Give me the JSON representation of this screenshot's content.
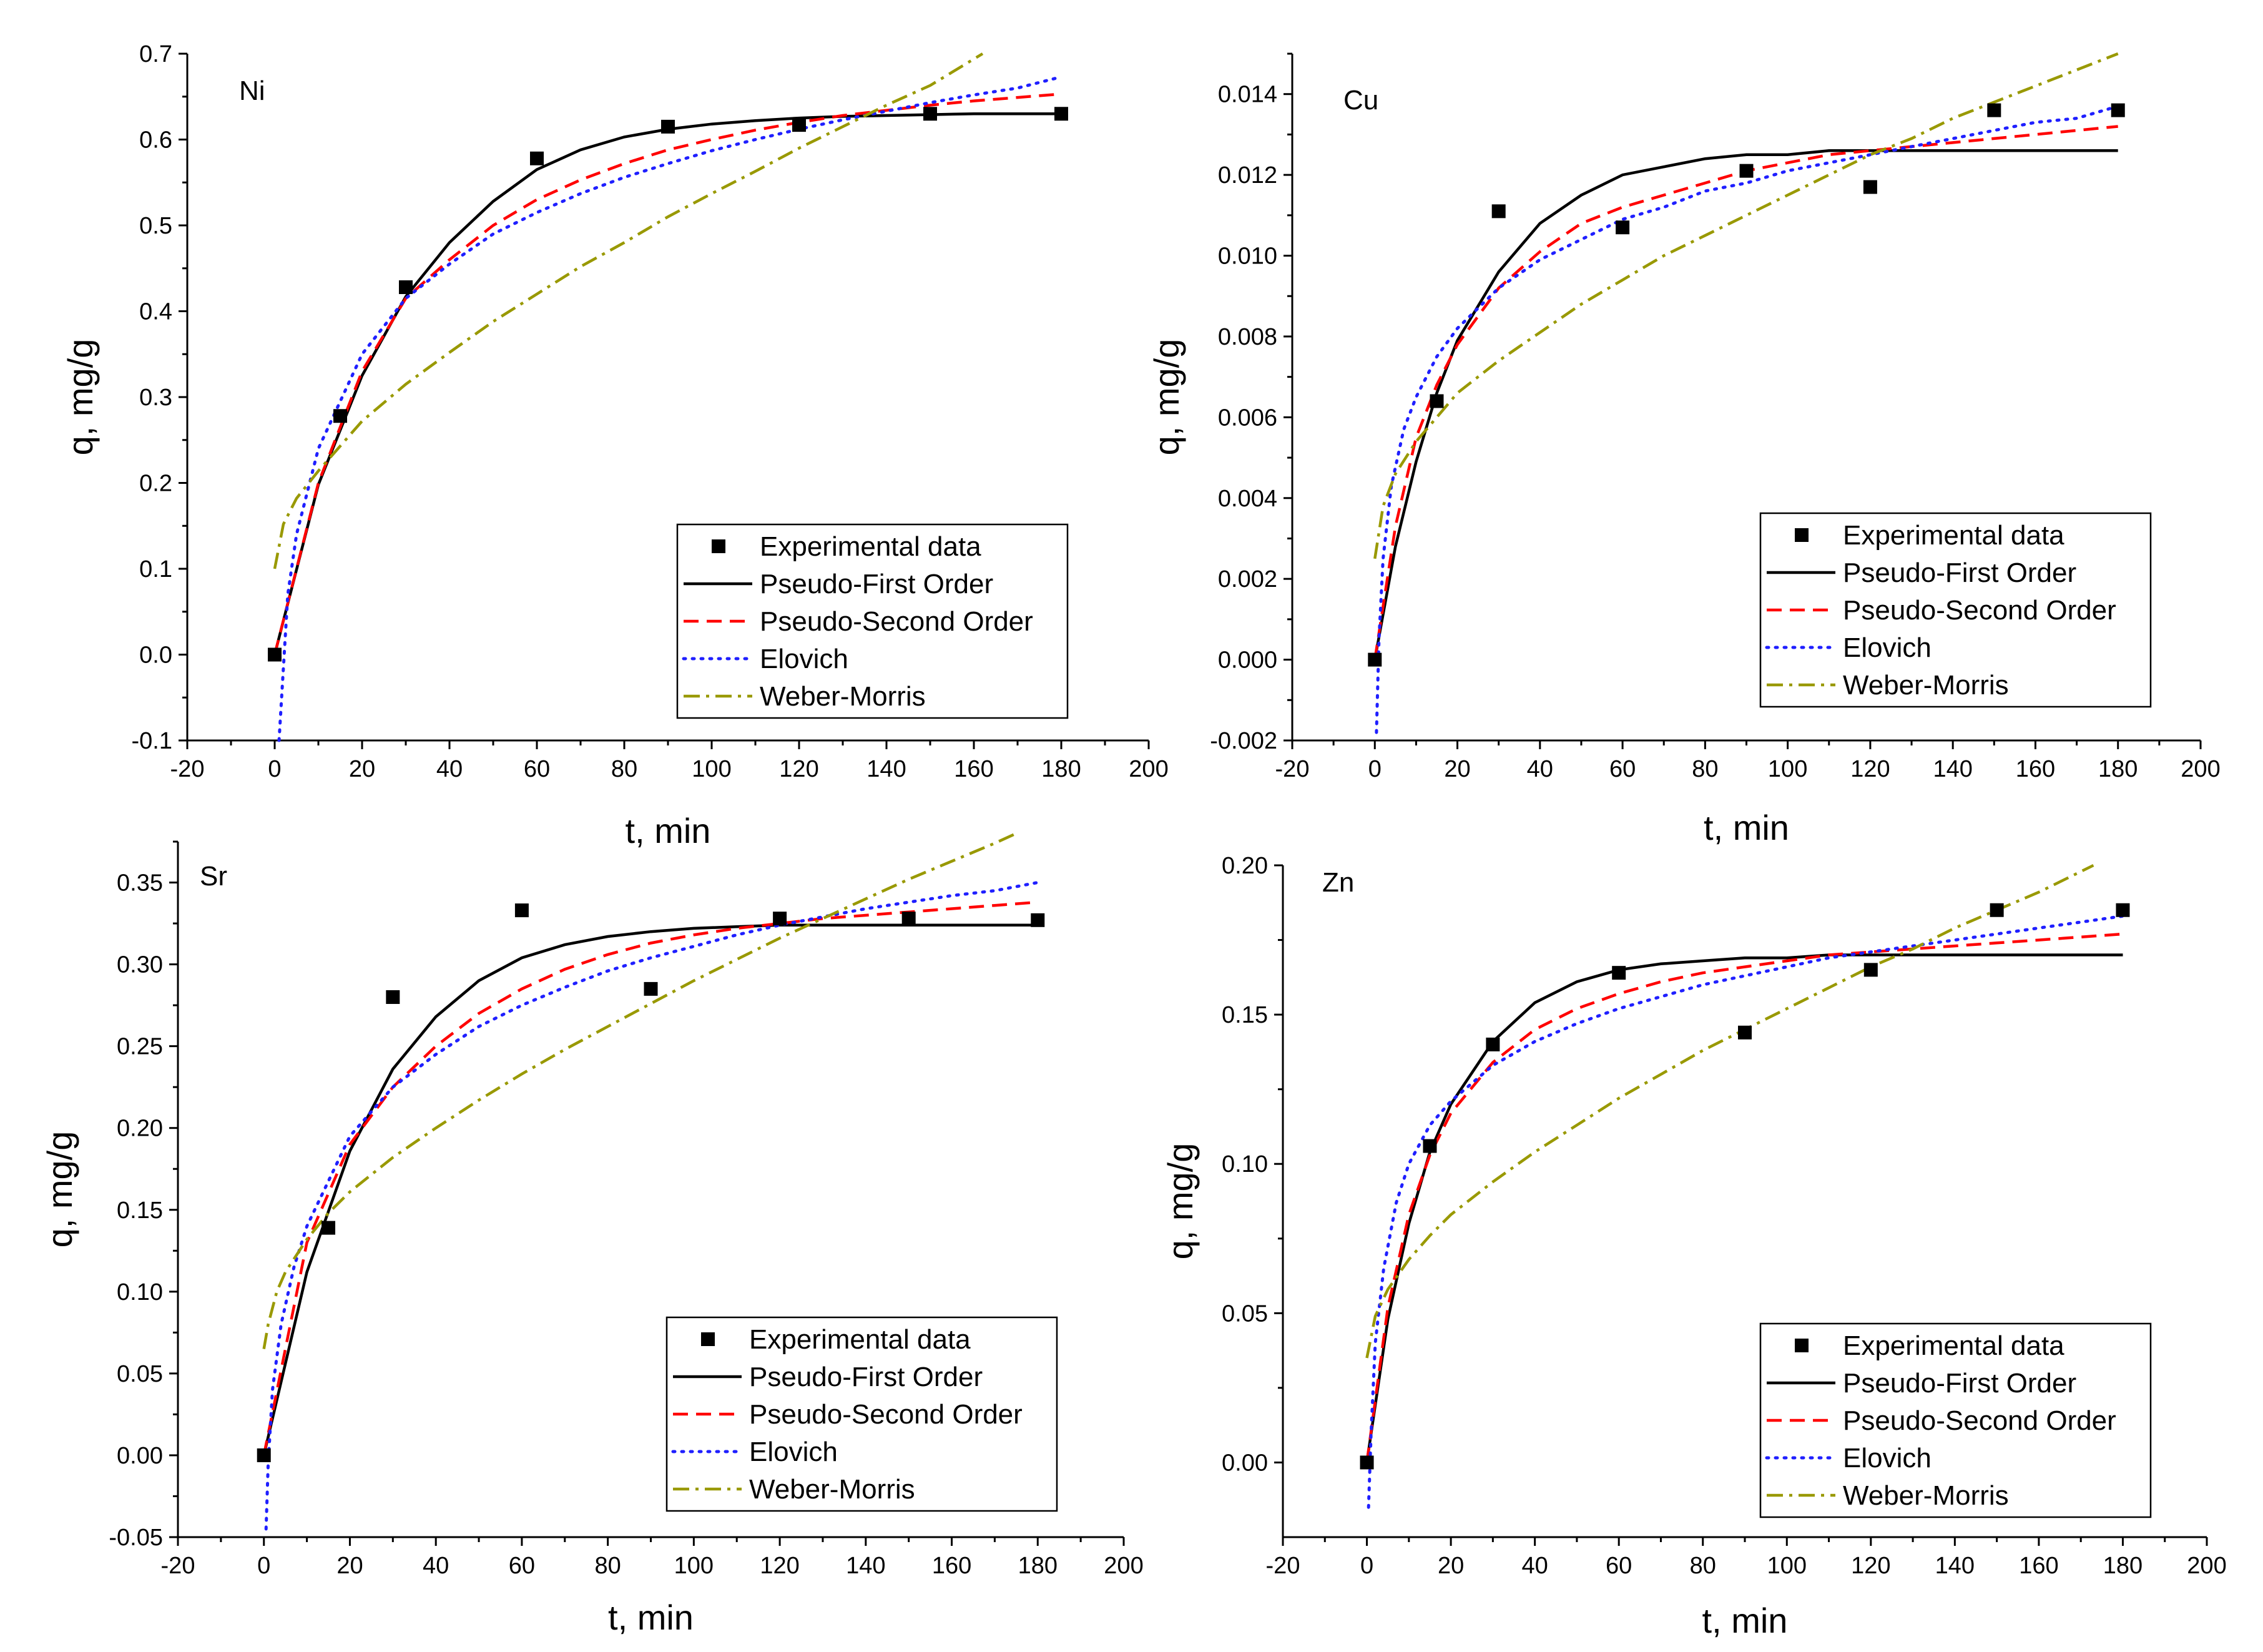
{
  "chart_data": [
    {
      "type": "line",
      "title": "Ni",
      "xlabel": "t, min",
      "ylabel": "q, mg/g",
      "xlim": [
        -20,
        200
      ],
      "ylim": [
        -0.1,
        0.7
      ],
      "xticks": [
        "-20",
        "0",
        "20",
        "40",
        "60",
        "80",
        "100",
        "120",
        "140",
        "160",
        "180",
        "200"
      ],
      "yticks": [
        "-0.1",
        "0.0",
        "0.1",
        "0.2",
        "0.3",
        "0.4",
        "0.5",
        "0.6",
        "0.7"
      ],
      "experimental": {
        "name": "Experimental data",
        "x": [
          0,
          15,
          30,
          60,
          90,
          120,
          150,
          180
        ],
        "y": [
          0.0,
          0.278,
          0.428,
          0.578,
          0.615,
          0.617,
          0.63,
          0.63
        ]
      },
      "series": [
        {
          "name": "Pseudo-First Order",
          "color": "#000000",
          "style": "solid",
          "x": [
            0,
            10,
            20,
            30,
            40,
            50,
            60,
            70,
            80,
            90,
            100,
            110,
            120,
            130,
            140,
            150,
            160,
            170,
            180
          ],
          "y": [
            0.0,
            0.198,
            0.325,
            0.417,
            0.48,
            0.528,
            0.565,
            0.588,
            0.603,
            0.612,
            0.618,
            0.622,
            0.625,
            0.627,
            0.628,
            0.629,
            0.63,
            0.63,
            0.63
          ]
        },
        {
          "name": "Pseudo-Second Order",
          "color": "#ff0000",
          "style": "dash",
          "x": [
            0,
            10,
            20,
            30,
            40,
            50,
            60,
            70,
            80,
            90,
            100,
            110,
            120,
            130,
            140,
            150,
            160,
            170,
            180
          ],
          "y": [
            0.0,
            0.2,
            0.33,
            0.415,
            0.46,
            0.5,
            0.53,
            0.553,
            0.572,
            0.588,
            0.6,
            0.611,
            0.62,
            0.628,
            0.634,
            0.64,
            0.645,
            0.649,
            0.653
          ]
        },
        {
          "name": "Elovich",
          "color": "#1f1fff",
          "style": "dot",
          "x": [
            1,
            3,
            5,
            10,
            20,
            30,
            40,
            50,
            60,
            70,
            80,
            90,
            100,
            110,
            120,
            130,
            140,
            150,
            160,
            170,
            180
          ],
          "y": [
            -0.1,
            0.07,
            0.14,
            0.24,
            0.35,
            0.415,
            0.455,
            0.49,
            0.515,
            0.537,
            0.556,
            0.572,
            0.587,
            0.6,
            0.612,
            0.623,
            0.633,
            0.643,
            0.652,
            0.66,
            0.673
          ]
        },
        {
          "name": "Weber-Morris",
          "color": "#999900",
          "style": "dashdot",
          "x": [
            0,
            2,
            5,
            10,
            20,
            30,
            40,
            50,
            60,
            70,
            80,
            90,
            100,
            110,
            120,
            130,
            140,
            150,
            162
          ],
          "y": [
            0.1,
            0.152,
            0.182,
            0.214,
            0.272,
            0.315,
            0.352,
            0.388,
            0.42,
            0.452,
            0.48,
            0.51,
            0.537,
            0.563,
            0.59,
            0.615,
            0.64,
            0.663,
            0.7
          ]
        }
      ]
    },
    {
      "type": "line",
      "title": "Cu",
      "xlabel": "t, min",
      "ylabel": "q, mg/g",
      "xlim": [
        -20,
        200
      ],
      "ylim": [
        -0.002,
        0.015
      ],
      "xticks": [
        "-20",
        "0",
        "20",
        "40",
        "60",
        "80",
        "100",
        "120",
        "140",
        "160",
        "180",
        "200"
      ],
      "yticks": [
        "-0.002",
        "0.000",
        "0.002",
        "0.004",
        "0.006",
        "0.008",
        "0.010",
        "0.012",
        "0.014"
      ],
      "experimental": {
        "name": "Experimental data",
        "x": [
          0,
          15,
          30,
          60,
          90,
          120,
          150,
          180
        ],
        "y": [
          0.0,
          0.0064,
          0.0111,
          0.0107,
          0.0121,
          0.0117,
          0.0136,
          0.0136
        ]
      },
      "series": [
        {
          "name": "Pseudo-First Order",
          "color": "#000000",
          "style": "solid",
          "x": [
            0,
            5,
            10,
            15,
            20,
            30,
            40,
            50,
            60,
            70,
            80,
            90,
            100,
            110,
            120,
            130,
            140,
            150,
            160,
            170,
            180
          ],
          "y": [
            0.0,
            0.0028,
            0.0049,
            0.0066,
            0.0079,
            0.0096,
            0.0108,
            0.0115,
            0.012,
            0.0122,
            0.0124,
            0.0125,
            0.0125,
            0.0126,
            0.0126,
            0.0126,
            0.0126,
            0.0126,
            0.0126,
            0.0126,
            0.0126
          ]
        },
        {
          "name": "Pseudo-Second Order",
          "color": "#ff0000",
          "style": "dash",
          "x": [
            0,
            5,
            10,
            15,
            20,
            30,
            40,
            50,
            60,
            70,
            80,
            90,
            100,
            110,
            120,
            130,
            140,
            150,
            160,
            170,
            180
          ],
          "y": [
            0.0,
            0.0033,
            0.0055,
            0.0068,
            0.0078,
            0.0092,
            0.0101,
            0.0108,
            0.0112,
            0.0115,
            0.0118,
            0.0121,
            0.0123,
            0.0125,
            0.0126,
            0.0127,
            0.0128,
            0.0129,
            0.013,
            0.0131,
            0.0132
          ]
        },
        {
          "name": "Elovich",
          "color": "#1f1fff",
          "style": "dot",
          "x": [
            0.4,
            1,
            2,
            4,
            7,
            10,
            15,
            20,
            30,
            40,
            50,
            60,
            70,
            80,
            90,
            100,
            110,
            120,
            130,
            140,
            150,
            160,
            170,
            180
          ],
          "y": [
            -0.0018,
            0.0005,
            0.0025,
            0.0043,
            0.0057,
            0.0065,
            0.0075,
            0.0082,
            0.0092,
            0.0099,
            0.0104,
            0.0109,
            0.0112,
            0.0116,
            0.0118,
            0.0121,
            0.0123,
            0.0125,
            0.0127,
            0.0129,
            0.0131,
            0.0133,
            0.0134,
            0.0137
          ]
        },
        {
          "name": "Weber-Morris",
          "color": "#999900",
          "style": "dashdot",
          "x": [
            0,
            2,
            5,
            10,
            15,
            20,
            30,
            40,
            50,
            60,
            70,
            80,
            90,
            100,
            110,
            120,
            130,
            140,
            150,
            160,
            170,
            180
          ],
          "y": [
            0.0025,
            0.0038,
            0.0046,
            0.0054,
            0.006,
            0.0066,
            0.0074,
            0.0081,
            0.0088,
            0.0094,
            0.01,
            0.0105,
            0.011,
            0.0115,
            0.012,
            0.0125,
            0.0129,
            0.0134,
            0.0138,
            0.0142,
            0.0146,
            0.015
          ]
        }
      ]
    },
    {
      "type": "line",
      "title": "Sr",
      "xlabel": "t, min",
      "ylabel": "q, mg/g",
      "xlim": [
        -20,
        200
      ],
      "ylim": [
        -0.05,
        0.375
      ],
      "xticks": [
        "-20",
        "0",
        "20",
        "40",
        "60",
        "80",
        "100",
        "120",
        "140",
        "160",
        "180",
        "200"
      ],
      "yticks": [
        "-0.05",
        "0.00",
        "0.05",
        "0.10",
        "0.15",
        "0.20",
        "0.25",
        "0.30",
        "0.35"
      ],
      "experimental": {
        "name": "Experimental data",
        "x": [
          0,
          15,
          30,
          60,
          90,
          120,
          150,
          180
        ],
        "y": [
          0.0,
          0.139,
          0.28,
          0.333,
          0.285,
          0.328,
          0.328,
          0.327
        ]
      },
      "series": [
        {
          "name": "Pseudo-First Order",
          "color": "#000000",
          "style": "solid",
          "x": [
            0,
            10,
            20,
            30,
            40,
            50,
            60,
            70,
            80,
            90,
            100,
            110,
            120,
            130,
            140,
            150,
            160,
            170,
            180
          ],
          "y": [
            0.0,
            0.112,
            0.186,
            0.236,
            0.268,
            0.29,
            0.304,
            0.312,
            0.317,
            0.32,
            0.322,
            0.323,
            0.324,
            0.324,
            0.324,
            0.324,
            0.324,
            0.324,
            0.324
          ]
        },
        {
          "name": "Pseudo-Second Order",
          "color": "#ff0000",
          "style": "dash",
          "x": [
            0,
            10,
            20,
            30,
            40,
            50,
            60,
            70,
            80,
            90,
            100,
            110,
            120,
            130,
            140,
            150,
            160,
            170,
            180
          ],
          "y": [
            0.0,
            0.13,
            0.19,
            0.225,
            0.25,
            0.27,
            0.285,
            0.297,
            0.306,
            0.313,
            0.318,
            0.322,
            0.325,
            0.328,
            0.33,
            0.332,
            0.334,
            0.336,
            0.338
          ]
        },
        {
          "name": "Elovich",
          "color": "#1f1fff",
          "style": "dot",
          "x": [
            0.5,
            1,
            2,
            4,
            7,
            10,
            20,
            30,
            40,
            50,
            60,
            70,
            80,
            90,
            100,
            110,
            120,
            130,
            140,
            150,
            160,
            170,
            180
          ],
          "y": [
            -0.045,
            -0.005,
            0.04,
            0.08,
            0.115,
            0.14,
            0.195,
            0.225,
            0.245,
            0.262,
            0.275,
            0.286,
            0.296,
            0.304,
            0.311,
            0.318,
            0.324,
            0.329,
            0.334,
            0.338,
            0.342,
            0.345,
            0.35
          ]
        },
        {
          "name": "Weber-Morris",
          "color": "#999900",
          "style": "dashdot",
          "x": [
            0,
            1,
            3,
            5,
            10,
            15,
            20,
            30,
            40,
            50,
            60,
            70,
            80,
            90,
            100,
            110,
            120,
            130,
            140,
            150,
            160,
            170,
            175
          ],
          "y": [
            0.065,
            0.08,
            0.1,
            0.112,
            0.132,
            0.148,
            0.161,
            0.182,
            0.2,
            0.217,
            0.233,
            0.248,
            0.262,
            0.276,
            0.29,
            0.303,
            0.316,
            0.328,
            0.34,
            0.352,
            0.363,
            0.374,
            0.38
          ]
        }
      ]
    },
    {
      "type": "line",
      "title": "Zn",
      "xlabel": "t, min",
      "ylabel": "q, mg/g",
      "xlim": [
        -20,
        200
      ],
      "ylim": [
        -0.025,
        0.2
      ],
      "xticks": [
        "-20",
        "0",
        "20",
        "40",
        "60",
        "80",
        "100",
        "120",
        "140",
        "160",
        "180",
        "200"
      ],
      "yticks": [
        "0.00",
        "0.05",
        "0.10",
        "0.15",
        "0.20"
      ],
      "experimental": {
        "name": "Experimental data",
        "x": [
          0,
          15,
          30,
          60,
          90,
          120,
          150,
          180
        ],
        "y": [
          0.0,
          0.106,
          0.14,
          0.164,
          0.144,
          0.165,
          0.185,
          0.185
        ]
      },
      "series": [
        {
          "name": "Pseudo-First Order",
          "color": "#000000",
          "style": "solid",
          "x": [
            0,
            5,
            10,
            15,
            20,
            30,
            40,
            50,
            60,
            70,
            80,
            90,
            100,
            110,
            120,
            130,
            140,
            150,
            160,
            170,
            180
          ],
          "y": [
            0.0,
            0.048,
            0.08,
            0.104,
            0.12,
            0.141,
            0.154,
            0.161,
            0.165,
            0.167,
            0.168,
            0.169,
            0.169,
            0.17,
            0.17,
            0.17,
            0.17,
            0.17,
            0.17,
            0.17,
            0.17
          ]
        },
        {
          "name": "Pseudo-Second Order",
          "color": "#ff0000",
          "style": "dash",
          "x": [
            0,
            5,
            10,
            15,
            20,
            30,
            40,
            50,
            60,
            70,
            80,
            90,
            100,
            110,
            120,
            130,
            140,
            150,
            160,
            170,
            180
          ],
          "y": [
            0.0,
            0.052,
            0.083,
            0.103,
            0.117,
            0.134,
            0.145,
            0.152,
            0.157,
            0.161,
            0.164,
            0.166,
            0.168,
            0.17,
            0.171,
            0.172,
            0.173,
            0.174,
            0.175,
            0.176,
            0.177
          ]
        },
        {
          "name": "Elovich",
          "color": "#1f1fff",
          "style": "dot",
          "x": [
            0.4,
            1,
            2,
            4,
            7,
            10,
            15,
            20,
            30,
            40,
            50,
            60,
            70,
            80,
            90,
            100,
            110,
            120,
            130,
            140,
            150,
            160,
            170,
            180
          ],
          "y": [
            -0.015,
            0.01,
            0.04,
            0.065,
            0.087,
            0.1,
            0.113,
            0.121,
            0.133,
            0.141,
            0.147,
            0.152,
            0.156,
            0.16,
            0.163,
            0.166,
            0.169,
            0.171,
            0.173,
            0.175,
            0.177,
            0.179,
            0.181,
            0.183
          ]
        },
        {
          "name": "Weber-Morris",
          "color": "#999900",
          "style": "dashdot",
          "x": [
            0,
            2,
            5,
            10,
            15,
            20,
            30,
            40,
            50,
            60,
            70,
            80,
            90,
            100,
            110,
            120,
            130,
            140,
            150,
            160,
            173
          ],
          "y": [
            0.035,
            0.049,
            0.058,
            0.068,
            0.076,
            0.083,
            0.094,
            0.104,
            0.113,
            0.122,
            0.13,
            0.138,
            0.145,
            0.152,
            0.159,
            0.166,
            0.172,
            0.179,
            0.185,
            0.191,
            0.2
          ]
        }
      ]
    }
  ]
}
